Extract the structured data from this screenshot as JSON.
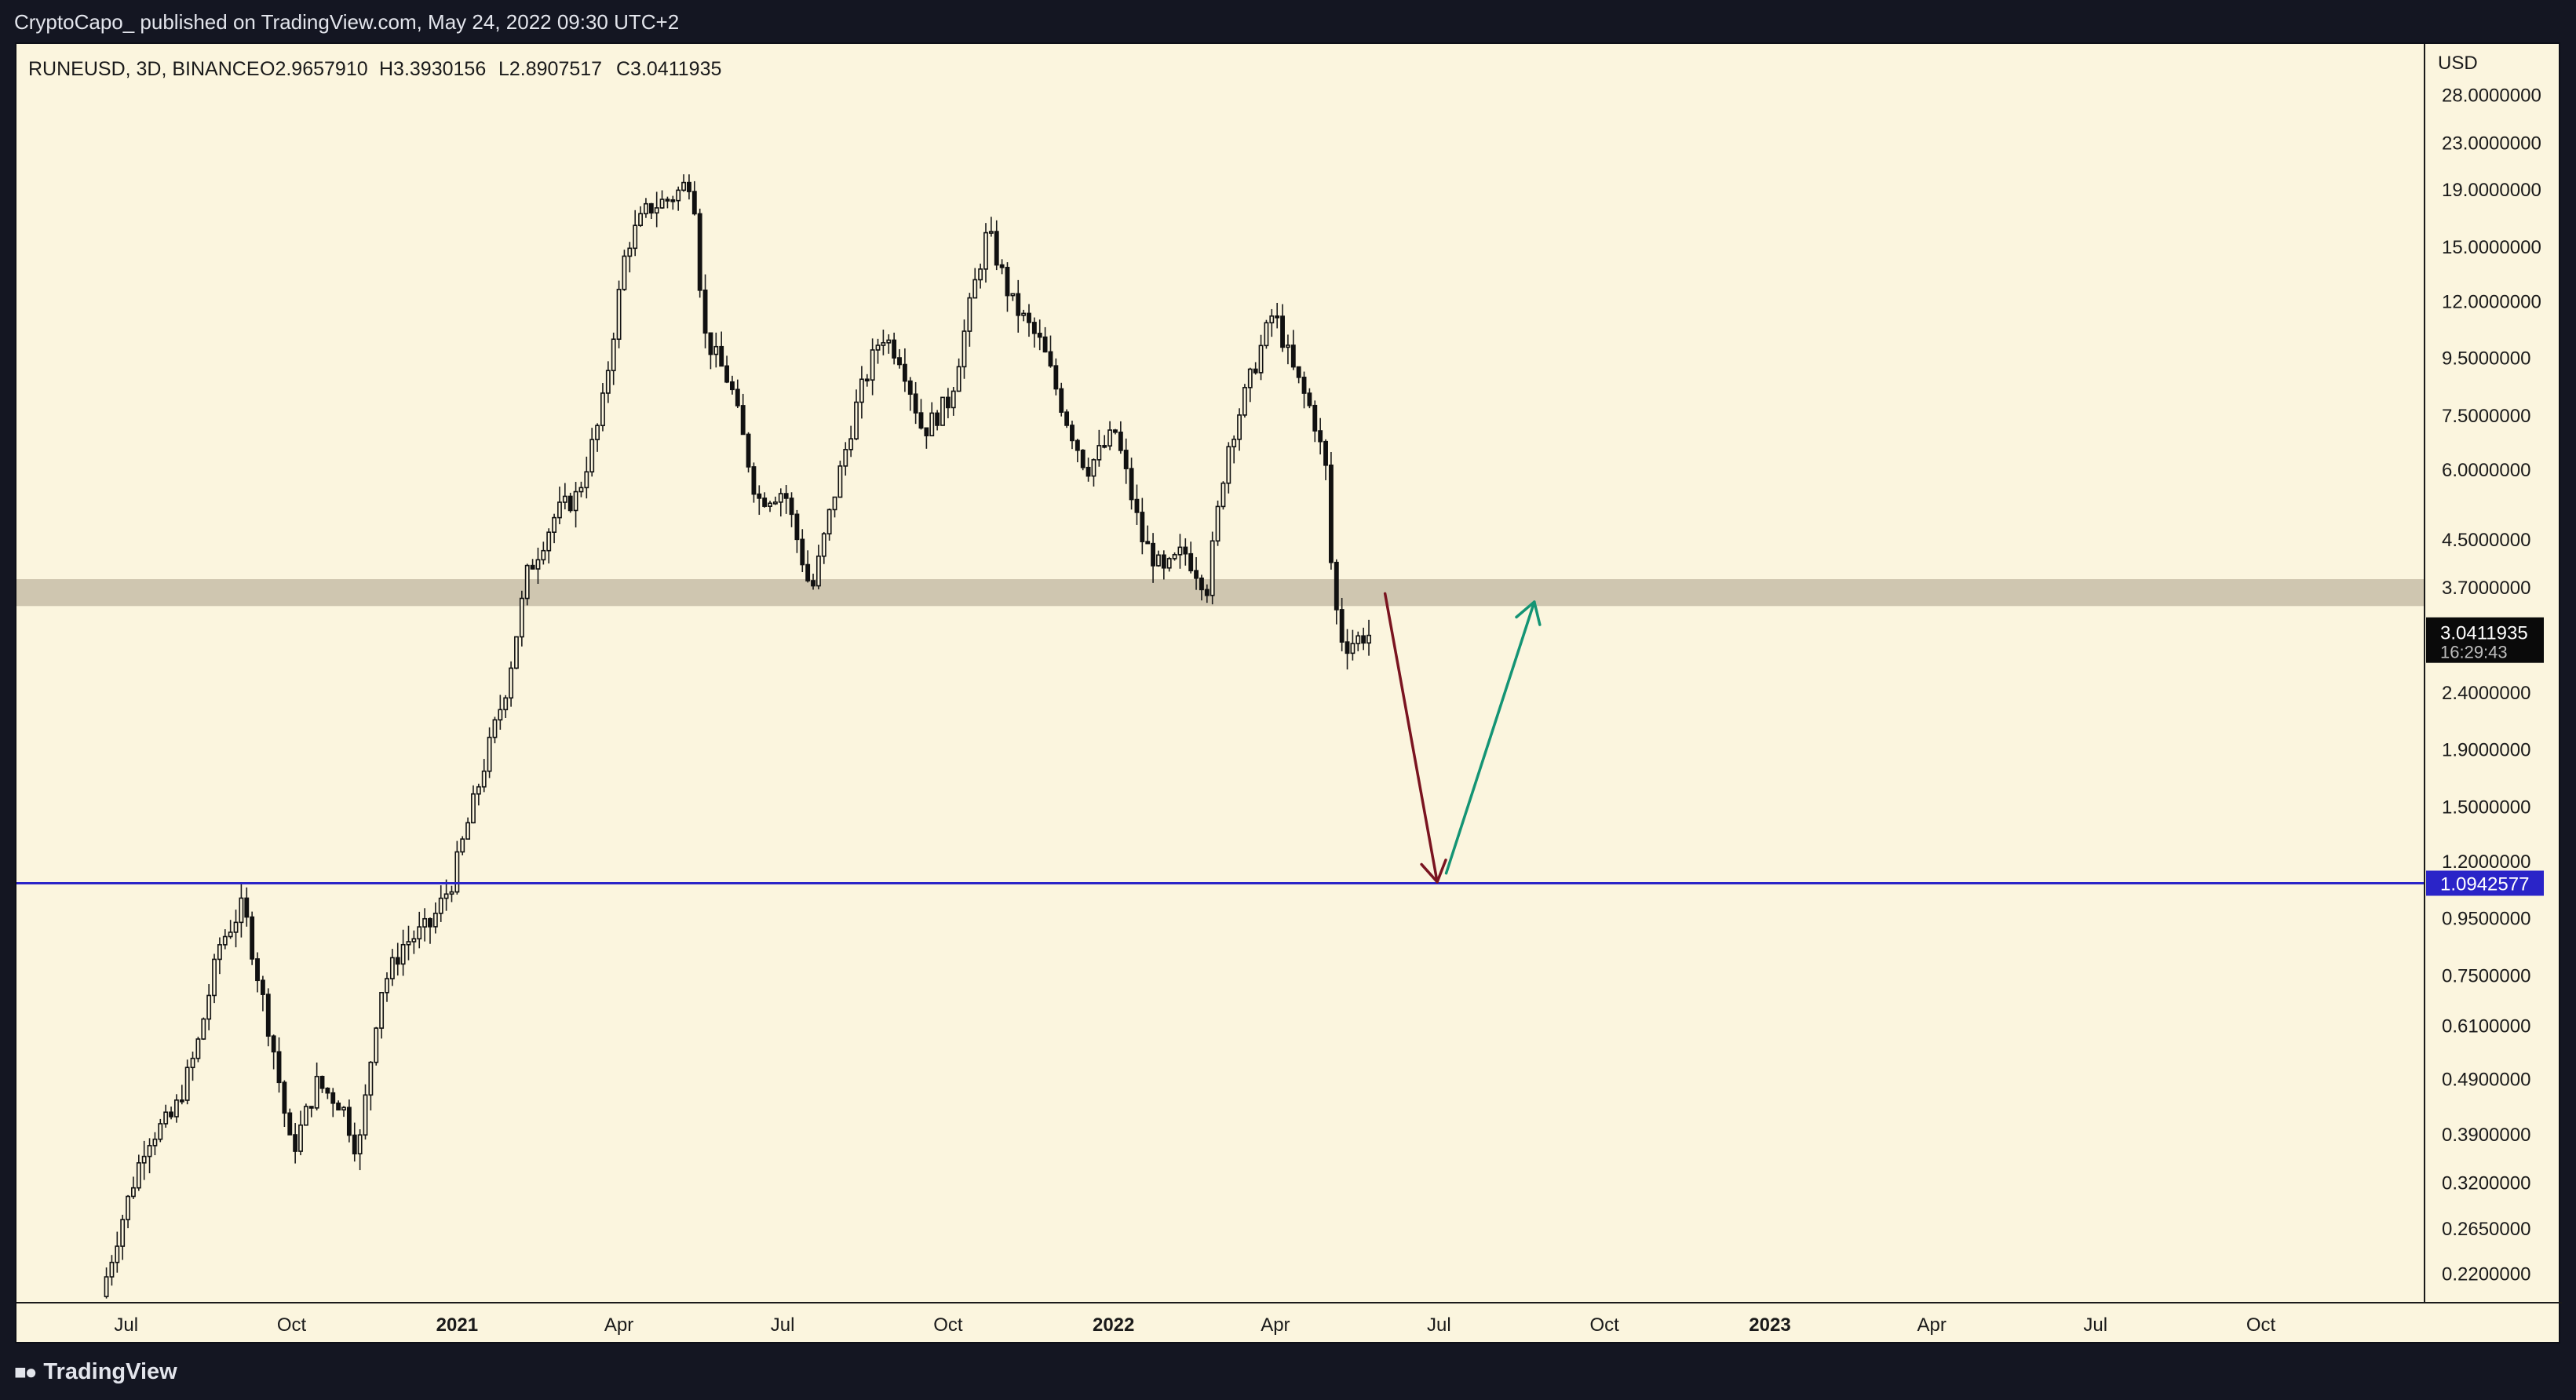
{
  "header": {
    "publisher": "CryptoCapo_ published on TradingView.com, May 24, 2022 09:30 UTC+2"
  },
  "footer": {
    "brand": "TradingView",
    "logo_icon": "tradingview-logo-icon"
  },
  "chart_data": {
    "type": "candlestick",
    "symbol_line": "RUNEUSD, 3D, BINANCE",
    "ohlc": {
      "open_label": "O2.9657910",
      "high_label": "H3.3930156",
      "low_label": "L2.8907517",
      "close_label": "C3.0411935"
    },
    "currency": "USD",
    "y_scale": "log",
    "y_range": [
      0.195,
      34.5
    ],
    "y_ticks": [
      "28.0000000",
      "23.0000000",
      "19.0000000",
      "15.0000000",
      "12.0000000",
      "9.5000000",
      "7.5000000",
      "6.0000000",
      "4.5000000",
      "3.7000000",
      "2.4000000",
      "1.9000000",
      "1.5000000",
      "1.2000000",
      "0.9500000",
      "0.7500000",
      "0.6100000",
      "0.4900000",
      "0.3900000",
      "0.3200000",
      "0.2650000",
      "0.2200000"
    ],
    "x_ticks": [
      {
        "label": "Jul",
        "bold": false
      },
      {
        "label": "Oct",
        "bold": false
      },
      {
        "label": "2021",
        "bold": true
      },
      {
        "label": "Apr",
        "bold": false
      },
      {
        "label": "Jul",
        "bold": false
      },
      {
        "label": "Oct",
        "bold": false
      },
      {
        "label": "2022",
        "bold": true
      },
      {
        "label": "Apr",
        "bold": false
      },
      {
        "label": "Jul",
        "bold": false
      },
      {
        "label": "Oct",
        "bold": false
      },
      {
        "label": "2023",
        "bold": true
      },
      {
        "label": "Apr",
        "bold": false
      },
      {
        "label": "Jul",
        "bold": false
      },
      {
        "label": "Oct",
        "bold": false
      }
    ],
    "last_price": {
      "value": "3.0411935",
      "countdown": "16:29:43"
    },
    "support_line": {
      "value": "1.0942577",
      "color": "#2a24c8"
    },
    "resistance_zone": {
      "low": 3.42,
      "high": 3.82,
      "color": "#cfc6b0"
    },
    "projection": {
      "down_arrow": {
        "from": 3.6,
        "to": 1.1,
        "color": "#7a1420"
      },
      "up_arrow": {
        "from": 1.14,
        "to": 3.48,
        "color": "#149474"
      }
    },
    "price_path": [
      [
        "2020-06-20",
        0.2
      ],
      [
        "2020-07-01",
        0.27
      ],
      [
        "2020-07-15",
        0.38
      ],
      [
        "2020-07-30",
        0.42
      ],
      [
        "2020-08-12",
        0.55
      ],
      [
        "2020-08-25",
        0.85
      ],
      [
        "2020-09-07",
        1.0
      ],
      [
        "2020-09-14",
        0.78
      ],
      [
        "2020-09-24",
        0.55
      ],
      [
        "2020-10-04",
        0.36
      ],
      [
        "2020-10-18",
        0.48
      ],
      [
        "2020-11-01",
        0.44
      ],
      [
        "2020-11-10",
        0.36
      ],
      [
        "2020-11-22",
        0.7
      ],
      [
        "2020-12-05",
        0.85
      ],
      [
        "2020-12-20",
        0.92
      ],
      [
        "2021-01-01",
        1.1
      ],
      [
        "2021-01-15",
        1.6
      ],
      [
        "2021-02-01",
        2.5
      ],
      [
        "2021-02-12",
        3.9
      ],
      [
        "2021-02-28",
        5.0
      ],
      [
        "2021-03-12",
        5.4
      ],
      [
        "2021-03-25",
        7.5
      ],
      [
        "2021-04-08",
        15.0
      ],
      [
        "2021-04-20",
        17.5
      ],
      [
        "2021-05-05",
        18.5
      ],
      [
        "2021-05-15",
        20.0
      ],
      [
        "2021-05-21",
        10.5
      ],
      [
        "2021-06-05",
        8.5
      ],
      [
        "2021-06-20",
        5.3
      ],
      [
        "2021-07-05",
        5.5
      ],
      [
        "2021-07-20",
        3.6
      ],
      [
        "2021-08-01",
        5.3
      ],
      [
        "2021-08-15",
        8.0
      ],
      [
        "2021-08-28",
        10.5
      ],
      [
        "2021-09-08",
        9.5
      ],
      [
        "2021-09-20",
        7.0
      ],
      [
        "2021-10-05",
        8.0
      ],
      [
        "2021-10-18",
        12.5
      ],
      [
        "2021-10-26",
        16.0
      ],
      [
        "2021-11-08",
        12.0
      ],
      [
        "2021-11-25",
        10.0
      ],
      [
        "2021-12-08",
        7.5
      ],
      [
        "2021-12-20",
        6.0
      ],
      [
        "2022-01-05",
        7.0
      ],
      [
        "2022-01-20",
        4.5
      ],
      [
        "2022-02-01",
        3.9
      ],
      [
        "2022-02-12",
        4.3
      ],
      [
        "2022-02-25",
        3.7
      ],
      [
        "2022-03-08",
        6.5
      ],
      [
        "2022-03-25",
        9.5
      ],
      [
        "2022-04-03",
        11.5
      ],
      [
        "2022-04-14",
        9.0
      ],
      [
        "2022-04-25",
        7.5
      ],
      [
        "2022-05-02",
        6.0
      ],
      [
        "2022-05-06",
        3.6
      ],
      [
        "2022-05-12",
        2.9
      ],
      [
        "2022-05-24",
        3.04
      ]
    ]
  }
}
